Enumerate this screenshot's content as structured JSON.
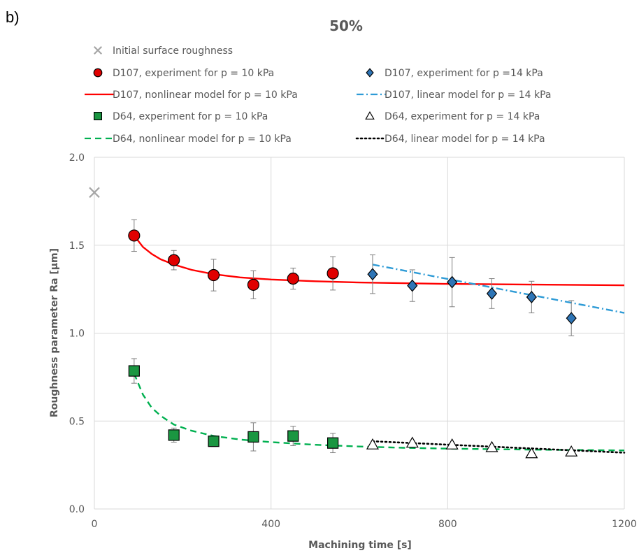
{
  "panel_label": "b)",
  "chart_data": {
    "type": "scatter",
    "title": "50%",
    "xlabel": "Machining time [s]",
    "ylabel": "Roughness parameter Ra [µm]",
    "xlim": [
      0,
      1200
    ],
    "ylim": [
      0,
      2.0
    ],
    "xticks": [
      0,
      400,
      800,
      1200
    ],
    "yticks": [
      0.0,
      0.5,
      1.0,
      1.5,
      2.0
    ],
    "ytick_labels": [
      "0.0",
      "0.5",
      "1.0",
      "1.5",
      "2.0"
    ],
    "grid": true,
    "legend_position": "top",
    "series": [
      {
        "name": "Initial surface roughness",
        "kind": "points",
        "marker": "x",
        "color": "#a6a6a6",
        "x": [
          0
        ],
        "y": [
          1.8
        ]
      },
      {
        "name": "D107, experiment for p = 10 kPa",
        "kind": "points",
        "marker": "circle",
        "color": "#e00000",
        "x": [
          90,
          180,
          270,
          360,
          450,
          540
        ],
        "y": [
          1.555,
          1.415,
          1.33,
          1.275,
          1.31,
          1.34
        ],
        "err": [
          0.09,
          0.055,
          0.09,
          0.08,
          0.06,
          0.095
        ]
      },
      {
        "name": "D107, experiment for p =14 kPa",
        "kind": "points",
        "marker": "diamond",
        "color": "#2e75b6",
        "x": [
          630,
          720,
          810,
          900,
          990,
          1080
        ],
        "y": [
          1.335,
          1.27,
          1.29,
          1.225,
          1.205,
          1.085
        ],
        "err": [
          0.11,
          0.09,
          0.14,
          0.085,
          0.09,
          0.1
        ]
      },
      {
        "name": "D107, nonlinear model for p = 10 kPa",
        "kind": "line",
        "dash": "solid",
        "color": "#ff0000",
        "x": [
          90,
          110,
          130,
          150,
          180,
          220,
          270,
          330,
          400,
          500,
          600,
          700,
          800,
          900,
          1000,
          1100,
          1200
        ],
        "y": [
          1.555,
          1.49,
          1.45,
          1.42,
          1.39,
          1.36,
          1.335,
          1.317,
          1.305,
          1.295,
          1.288,
          1.284,
          1.28,
          1.278,
          1.276,
          1.274,
          1.272
        ]
      },
      {
        "name": "D107, linear model for p = 14 kPa",
        "kind": "line",
        "dash": "dashdot",
        "color": "#2e9bd6",
        "x": [
          630,
          1200
        ],
        "y": [
          1.39,
          1.115
        ]
      },
      {
        "name": "D64, experiment for p = 10 kPa",
        "kind": "points",
        "marker": "square",
        "color": "#1a9641",
        "x": [
          90,
          180,
          270,
          360,
          450,
          540
        ],
        "y": [
          0.785,
          0.42,
          0.385,
          0.41,
          0.415,
          0.375
        ],
        "err": [
          0.07,
          0.04,
          0.03,
          0.08,
          0.055,
          0.055
        ]
      },
      {
        "name": "D64, experiment for p = 14 kPa",
        "kind": "points",
        "marker": "triangle",
        "color": "#ffffff",
        "x": [
          630,
          720,
          810,
          900,
          990,
          1080
        ],
        "y": [
          0.365,
          0.375,
          0.365,
          0.35,
          0.315,
          0.325
        ]
      },
      {
        "name": "D64, nonlinear model for p = 10 kPa",
        "kind": "line",
        "dash": "dashed",
        "color": "#00b050",
        "x": [
          90,
          110,
          130,
          150,
          180,
          220,
          270,
          330,
          400,
          500,
          600,
          700,
          800,
          900,
          1000,
          1100,
          1200
        ],
        "y": [
          0.77,
          0.65,
          0.575,
          0.53,
          0.48,
          0.445,
          0.415,
          0.395,
          0.38,
          0.365,
          0.355,
          0.348,
          0.343,
          0.34,
          0.337,
          0.335,
          0.333
        ]
      },
      {
        "name": "D64, linear model for p = 14 kPa",
        "kind": "line",
        "dash": "dotted",
        "color": "#000000",
        "x": [
          630,
          1200
        ],
        "y": [
          0.385,
          0.32
        ]
      }
    ],
    "legend_order": [
      0,
      1,
      2,
      3,
      4,
      5,
      6,
      7,
      8
    ]
  }
}
